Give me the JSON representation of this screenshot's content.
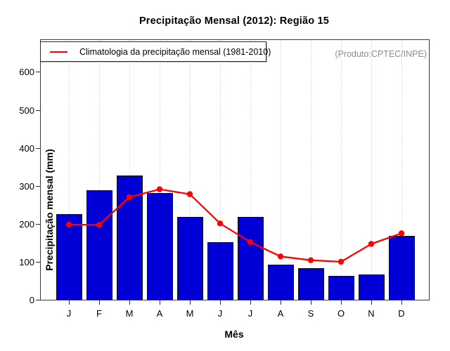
{
  "window": {
    "title": "Precipitação Mensal (2012): Região 15"
  },
  "legend": {
    "label": "Climatologia da precipitação mensal (1981-2010)"
  },
  "watermark": "(Produto:CPTEC/INPE)",
  "colors": {
    "bar_fill": "#0000d6",
    "bar_border": "#0d0d14",
    "line": "#ff0000",
    "grid": "#d9d9d9",
    "frame": "#3a3a3a",
    "watermark": "#8c8c8c",
    "text": "#000000"
  },
  "chart_data": {
    "type": "bar",
    "title": "Precipitação Mensal (2012): Região 15",
    "xlabel": "Mês",
    "ylabel": "Precipitação mensal (mm)",
    "categories": [
      "J",
      "F",
      "M",
      "A",
      "M",
      "J",
      "J",
      "A",
      "S",
      "O",
      "N",
      "D"
    ],
    "series": [
      {
        "name": "Precipitação mensal (2012)",
        "type": "bar",
        "values": [
          225,
          288,
          327,
          281,
          218,
          151,
          219,
          92,
          83,
          63,
          67,
          168
        ]
      },
      {
        "name": "Climatologia da precipitação mensal (1981-2010)",
        "type": "line",
        "values": [
          198,
          197,
          270,
          291,
          278,
          201,
          152,
          114,
          104,
          100,
          147,
          175
        ]
      }
    ],
    "yticks": [
      0,
      100,
      200,
      300,
      400,
      500,
      600
    ],
    "ylim": [
      0,
      684
    ],
    "grid": "vertical-dotted",
    "legend_position": "top-left-inside"
  }
}
